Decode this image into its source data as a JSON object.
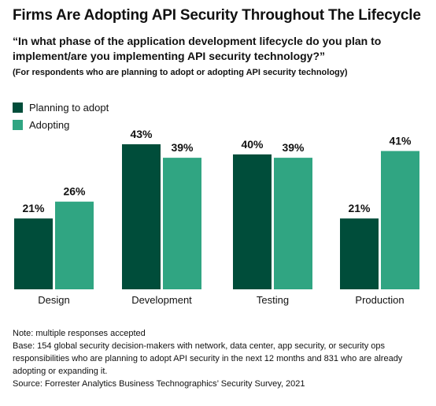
{
  "title": "Firms Are Adopting API Security Throughout The Lifecycle",
  "question": "“In what phase of the application development lifecycle do you plan to implement/are you implementing API security technology?”",
  "question_note": "(For respondents who are planning to adopt or adopting API security technology)",
  "colors": {
    "planning": "#004d3a",
    "adopting": "#30a582"
  },
  "chart_data": {
    "type": "bar",
    "categories": [
      "Design",
      "Development",
      "Testing",
      "Production"
    ],
    "series": [
      {
        "name": "Planning to adopt",
        "values": [
          21,
          43,
          40,
          21
        ],
        "labels": [
          "21%",
          "43%",
          "40%",
          "21%"
        ]
      },
      {
        "name": "Adopting",
        "values": [
          26,
          39,
          39,
          41
        ],
        "labels": [
          "26%",
          "39%",
          "39%",
          "41%"
        ]
      }
    ],
    "unit": "%",
    "ylim": [
      0,
      43
    ],
    "legend": "top-left",
    "grid": false
  },
  "notes": [
    "Note: multiple responses accepted",
    "Base: 154 global security decision-makers with network, data center, app security, or security ops responsibilities who are planning to adopt API security in the next 12 months and 831 who are already adopting or expanding it.",
    "Source: Forrester Analytics Business Technographics’ Security Survey, 2021"
  ]
}
